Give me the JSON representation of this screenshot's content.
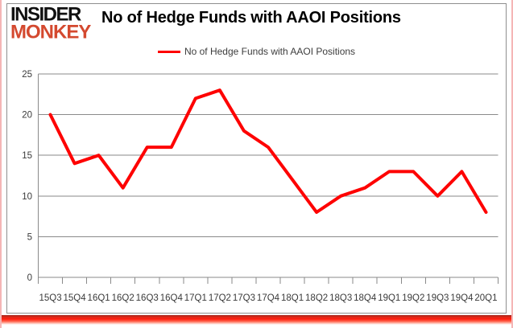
{
  "logo": {
    "line1": "INSIDER",
    "line2": "MONKEY"
  },
  "header": {
    "title": "No of Hedge Funds with AAOI Positions"
  },
  "legend": {
    "label": "No of Hedge Funds with AAOI Positions",
    "line_color": "#fe0000"
  },
  "colors": {
    "line": "#fe0000",
    "grid": "#8a8a8a",
    "tick_text": "#3a3a3a",
    "logo_black": "#111111",
    "logo_red": "#d4492f",
    "chart_border": "#8f8f8f",
    "edge_pink": "#f5b6b6",
    "bottom_bar_red": "#ff1d0e"
  },
  "chart_data": {
    "type": "line",
    "title": "No of Hedge Funds with AAOI Positions",
    "categories": [
      "15Q3",
      "15Q4",
      "16Q1",
      "16Q2",
      "16Q3",
      "16Q4",
      "17Q1",
      "17Q2",
      "17Q3",
      "17Q4",
      "18Q1",
      "18Q2",
      "18Q3",
      "18Q4",
      "19Q1",
      "19Q2",
      "19Q3",
      "19Q4",
      "20Q1"
    ],
    "series": [
      {
        "name": "No of Hedge Funds with AAOI Positions",
        "color": "#fe0000",
        "values": [
          20,
          14,
          15,
          11,
          16,
          16,
          22,
          23,
          18,
          16,
          12,
          8,
          10,
          11,
          13,
          13,
          10,
          13,
          8
        ]
      }
    ],
    "xlabel": "",
    "ylabel": "",
    "ylim": [
      0,
      25
    ],
    "yticks": [
      0,
      5,
      10,
      15,
      20,
      25
    ],
    "grid": true,
    "legend_position": "top-center"
  }
}
